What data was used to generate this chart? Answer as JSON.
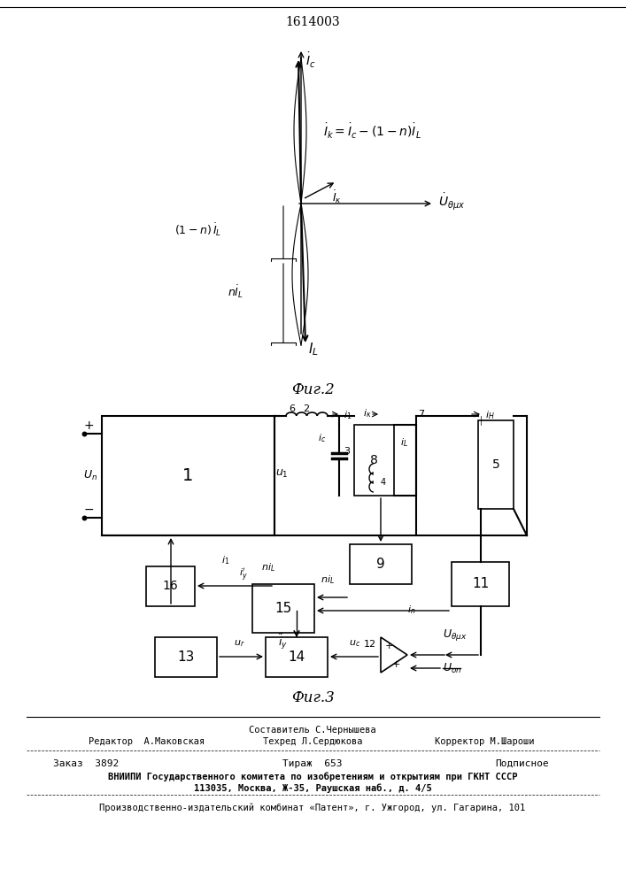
{
  "patent_number": "1614003",
  "fig2_caption": "Фиг.2",
  "fig3_caption": "Фиг.3",
  "footer_line1_left": "Редактор  А.Маковская",
  "footer_line1_center": "Составитель С.Чернышева",
  "footer_line1_right": "Корректор М.Шароши",
  "footer_line2_center": "Техред Л.Сердюкова",
  "footer_order": "Заказ  3892",
  "footer_tirazh": "Тираж  653",
  "footer_podpisnoe": "Подписное",
  "footer_vniiipi": "ВНИИПИ Государственного комитета по изобретениям и открытиям при ГКНТ СССР",
  "footer_address": "113035, Москва, Ж-35, Раушская наб., д. 4/5",
  "footer_proizv": "Производственно-издательский комбинат «Патент», г. Ужгород, ул. Гагарина, 101"
}
